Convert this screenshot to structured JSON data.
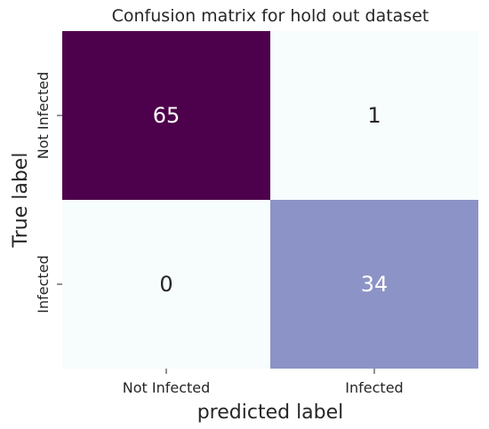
{
  "chart_data": {
    "type": "heatmap",
    "title": "Confusion matrix for hold out dataset",
    "xlabel": "predicted label",
    "ylabel": "True label",
    "x_categories": [
      "Not Infected",
      "Infected"
    ],
    "y_categories": [
      "Not Infected",
      "Infected"
    ],
    "values": [
      [
        65,
        1
      ],
      [
        0,
        34
      ]
    ],
    "colormap": "BuPu",
    "colorbar": false,
    "colors": {
      "cells": [
        [
          "#4d004b",
          "#f7fcfd"
        ],
        [
          "#f7fcfd",
          "#8c93c6"
        ]
      ],
      "text_on_dark": "#ffffff",
      "text_on_light": "#262626"
    }
  }
}
